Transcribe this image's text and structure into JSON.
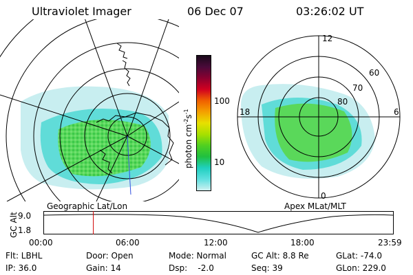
{
  "header": {
    "instrument": "Ultraviolet Imager",
    "date": "06 Dec 07",
    "time": "03:26:02 UT"
  },
  "colorbar": {
    "label": "photon cm",
    "label_sup1": "-2",
    "label_mid": "s",
    "label_sup2": "-1",
    "ticks": [
      "100",
      "10"
    ],
    "colors": [
      "#1a0a1a",
      "#4a0a3a",
      "#8b0030",
      "#d10020",
      "#f06000",
      "#f4a000",
      "#e8e000",
      "#a8e000",
      "#50d020",
      "#20c040",
      "#20d0c0",
      "#60e0e0",
      "#d0f0f0"
    ]
  },
  "left_map": {
    "caption": "Geographic Lat/Lon"
  },
  "right_map": {
    "caption": "Apex MLat/MLT",
    "mlt_labels": {
      "top": "12",
      "left": "18",
      "right": "6",
      "bottom": "0"
    },
    "mlat_labels": [
      "60",
      "70",
      "80"
    ]
  },
  "alt_plot": {
    "ylabel": "GC Alt",
    "yticks": [
      "9.0",
      "1.8"
    ],
    "xticks": [
      "00:00",
      "06:00",
      "12:00",
      "18:00",
      "23:59"
    ],
    "marker_time_hours": 3.43
  },
  "info": {
    "flt": "Flt: LBHL",
    "ip": "IP: 36.0",
    "door": "Door: Open",
    "gain": "Gain: 14",
    "mode": "Mode: Normal",
    "dsp": "Dsp:    -2.0",
    "gcalt": "GC Alt: 8.8 Re",
    "seq": "Seq: 39",
    "glat": "GLat: -74.0",
    "glon": "GLon: 229.0"
  }
}
